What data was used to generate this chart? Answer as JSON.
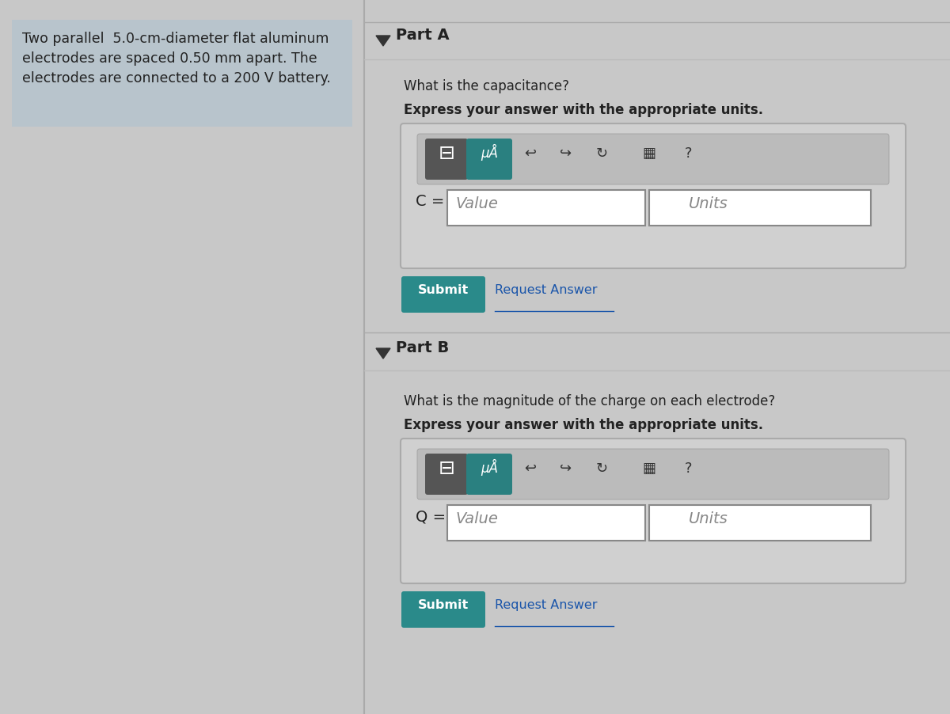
{
  "bg_color_left": "#c8c8c8",
  "bg_color_right": "#e0e0e0",
  "left_panel_color": "#b8c4cc",
  "right_bg": "#e4e4e4",
  "divider_color": "#999999",
  "left_text_line1": "Two parallel  5.0-cm-diameter flat aluminum",
  "left_text_line2": "electrodes are spaced 0.50 mm apart. The",
  "left_text_line3": "electrodes are connected to a 200 V battery.",
  "partA_label": "Part A",
  "partA_q1": "What is the capacitance?",
  "partA_q2": "Express your answer with the appropriate units.",
  "partA_var": "C =",
  "partA_value": "Value",
  "partA_units": "Units",
  "partB_label": "Part B",
  "partB_q1": "What is the magnitude of the charge on each electrode?",
  "partB_q2": "Express your answer with the appropriate units.",
  "partB_var": "Q =",
  "partB_value": "Value",
  "partB_units": "Units",
  "submit_color": "#2a8a8a",
  "submit_text_color": "#ffffff",
  "submit_label": "Submit",
  "request_answer": "Request Answer",
  "teal_btn_color": "#2a8080",
  "dark_btn_color": "#555555",
  "input_box_color": "#ffffff",
  "toolbar_bg": "#bbbbbb",
  "input_area_bg": "#d0d0d0",
  "input_border": "#999999",
  "text_dark": "#222222",
  "text_gray": "#888888",
  "link_color": "#1a55aa"
}
